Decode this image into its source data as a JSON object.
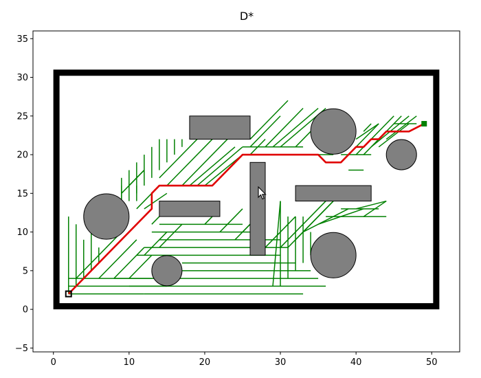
{
  "chart_data": {
    "type": "path-planning",
    "title": "D*",
    "xlabel": "",
    "ylabel": "",
    "xlim": [
      -2.7,
      53.7
    ],
    "ylim": [
      -5.5,
      36.0
    ],
    "xticks": [
      0,
      10,
      20,
      30,
      40,
      50
    ],
    "yticks": [
      -5,
      0,
      5,
      10,
      15,
      20,
      25,
      30,
      35
    ],
    "grid": false,
    "colors": {
      "boundary": "#000000",
      "obstacle_fill": "#808080",
      "obstacle_edge": "#000000",
      "explored": "#008000",
      "path": "#e00000",
      "start": "#000000",
      "goal": "#008000"
    },
    "boundary": {
      "x0": 0.4,
      "y0": 0.4,
      "x1": 50.6,
      "y1": 30.6
    },
    "circles": [
      {
        "cx": 7,
        "cy": 12,
        "r": 3
      },
      {
        "cx": 15,
        "cy": 5,
        "r": 2
      },
      {
        "cx": 37,
        "cy": 23,
        "r": 3
      },
      {
        "cx": 37,
        "cy": 7,
        "r": 3
      },
      {
        "cx": 46,
        "cy": 20,
        "r": 2
      }
    ],
    "rectangles": [
      {
        "x": 18,
        "y": 22,
        "w": 8,
        "h": 3
      },
      {
        "x": 14,
        "y": 12,
        "w": 8,
        "h": 2
      },
      {
        "x": 26,
        "y": 7,
        "w": 2,
        "h": 12
      },
      {
        "x": 32,
        "y": 14,
        "w": 10,
        "h": 2
      }
    ],
    "start": {
      "x": 2,
      "y": 2
    },
    "goal": {
      "x": 49,
      "y": 24
    },
    "path": [
      [
        2,
        2
      ],
      [
        13,
        13
      ],
      [
        13,
        15
      ],
      [
        14,
        16
      ],
      [
        21,
        16
      ],
      [
        25,
        20
      ],
      [
        35,
        20
      ],
      [
        36,
        19
      ],
      [
        38,
        19
      ],
      [
        40,
        21
      ],
      [
        41,
        21
      ],
      [
        42,
        22
      ],
      [
        43,
        22
      ],
      [
        44,
        23
      ],
      [
        47,
        23
      ],
      [
        48,
        23.5
      ],
      [
        49,
        24
      ]
    ],
    "explored_branches": [
      [
        [
          2,
          2
        ],
        [
          12,
          2
        ]
      ],
      [
        [
          2,
          2
        ],
        [
          2,
          12
        ]
      ],
      [
        [
          2,
          3
        ],
        [
          15,
          3
        ]
      ],
      [
        [
          2,
          4
        ],
        [
          13,
          4
        ]
      ],
      [
        [
          3,
          3
        ],
        [
          3,
          11
        ]
      ],
      [
        [
          4,
          4
        ],
        [
          4,
          9
        ]
      ],
      [
        [
          5,
          5
        ],
        [
          5,
          10
        ]
      ],
      [
        [
          6,
          6
        ],
        [
          6,
          8
        ]
      ],
      [
        [
          12,
          2
        ],
        [
          33,
          2
        ]
      ],
      [
        [
          10,
          3
        ],
        [
          36,
          3
        ]
      ],
      [
        [
          8,
          4
        ],
        [
          35,
          4
        ]
      ],
      [
        [
          17,
          5
        ],
        [
          34,
          5
        ]
      ],
      [
        [
          17,
          6
        ],
        [
          32,
          6
        ]
      ],
      [
        [
          11,
          7
        ],
        [
          30,
          7
        ]
      ],
      [
        [
          12,
          8
        ],
        [
          31,
          8
        ]
      ],
      [
        [
          14,
          9
        ],
        [
          30,
          9
        ]
      ],
      [
        [
          13,
          10
        ],
        [
          28,
          10
        ]
      ],
      [
        [
          14,
          11
        ],
        [
          25,
          11
        ]
      ],
      [
        [
          3,
          4
        ],
        [
          9,
          10
        ]
      ],
      [
        [
          4,
          4
        ],
        [
          10,
          10
        ]
      ],
      [
        [
          6,
          4
        ],
        [
          11,
          9
        ]
      ],
      [
        [
          8,
          4
        ],
        [
          12,
          8
        ]
      ],
      [
        [
          10,
          4
        ],
        [
          13,
          7
        ]
      ],
      [
        [
          12,
          7
        ],
        [
          15,
          10
        ]
      ],
      [
        [
          14,
          8
        ],
        [
          17,
          11
        ]
      ],
      [
        [
          13,
          11
        ],
        [
          15,
          13
        ]
      ],
      [
        [
          29,
          3
        ],
        [
          30,
          14
        ]
      ],
      [
        [
          30,
          3
        ],
        [
          30,
          14
        ]
      ],
      [
        [
          31,
          4
        ],
        [
          31,
          12
        ]
      ],
      [
        [
          32,
          5
        ],
        [
          32,
          12
        ]
      ],
      [
        [
          33,
          6
        ],
        [
          33,
          12
        ]
      ],
      [
        [
          34,
          7
        ],
        [
          34,
          10
        ]
      ],
      [
        [
          30,
          8
        ],
        [
          36,
          14
        ]
      ],
      [
        [
          31,
          8
        ],
        [
          37,
          14
        ]
      ],
      [
        [
          32,
          9
        ],
        [
          38,
          15
        ]
      ],
      [
        [
          33,
          10
        ],
        [
          39,
          13
        ]
      ],
      [
        [
          35,
          11
        ],
        [
          41,
          13
        ]
      ],
      [
        [
          36,
          12
        ],
        [
          44,
          12
        ]
      ],
      [
        [
          38,
          13
        ],
        [
          43,
          13
        ]
      ],
      [
        [
          40,
          13
        ],
        [
          44,
          14
        ]
      ],
      [
        [
          41,
          12
        ],
        [
          44,
          14
        ]
      ],
      [
        [
          28,
          8
        ],
        [
          32,
          12
        ]
      ],
      [
        [
          24,
          9
        ],
        [
          28,
          13
        ]
      ],
      [
        [
          25,
          10
        ],
        [
          28,
          13
        ]
      ],
      [
        [
          22,
          10
        ],
        [
          25,
          13
        ]
      ],
      [
        [
          20,
          11
        ],
        [
          22,
          13
        ]
      ],
      [
        [
          9,
          13
        ],
        [
          9,
          17
        ]
      ],
      [
        [
          10,
          14
        ],
        [
          10,
          18
        ]
      ],
      [
        [
          11,
          15
        ],
        [
          11,
          19
        ]
      ],
      [
        [
          12,
          16
        ],
        [
          12,
          20
        ]
      ],
      [
        [
          13,
          17
        ],
        [
          13,
          21
        ]
      ],
      [
        [
          14,
          18
        ],
        [
          14,
          22
        ]
      ],
      [
        [
          15,
          19
        ],
        [
          15,
          22
        ]
      ],
      [
        [
          16,
          20
        ],
        [
          16,
          22
        ]
      ],
      [
        [
          17,
          21
        ],
        [
          17,
          22
        ]
      ],
      [
        [
          9,
          15
        ],
        [
          12,
          18
        ]
      ],
      [
        [
          10,
          16
        ],
        [
          12,
          18
        ]
      ],
      [
        [
          14,
          17
        ],
        [
          20,
          23
        ]
      ],
      [
        [
          15,
          16
        ],
        [
          21,
          22
        ]
      ],
      [
        [
          17,
          16
        ],
        [
          23,
          22
        ]
      ],
      [
        [
          18,
          16
        ],
        [
          24,
          21
        ]
      ],
      [
        [
          19,
          16
        ],
        [
          25,
          21
        ]
      ],
      [
        [
          20,
          16
        ],
        [
          25,
          20
        ]
      ],
      [
        [
          21,
          16
        ],
        [
          25,
          20
        ]
      ],
      [
        [
          26,
          20
        ],
        [
          28,
          22
        ]
      ],
      [
        [
          25,
          21
        ],
        [
          33,
          21
        ]
      ],
      [
        [
          26,
          22
        ],
        [
          31,
          27
        ]
      ],
      [
        [
          28,
          21
        ],
        [
          33,
          26
        ]
      ],
      [
        [
          29,
          21
        ],
        [
          35,
          26
        ]
      ],
      [
        [
          30,
          21
        ],
        [
          36,
          26
        ]
      ],
      [
        [
          32,
          21
        ],
        [
          34,
          23
        ]
      ],
      [
        [
          26,
          21
        ],
        [
          30,
          25
        ]
      ],
      [
        [
          24,
          22
        ],
        [
          26,
          24
        ]
      ],
      [
        [
          34,
          20
        ],
        [
          37,
          20
        ]
      ],
      [
        [
          38,
          20
        ],
        [
          42,
          20
        ]
      ],
      [
        [
          39,
          18
        ],
        [
          41,
          18
        ]
      ],
      [
        [
          39,
          20
        ],
        [
          43,
          24
        ]
      ],
      [
        [
          40,
          20
        ],
        [
          45,
          25
        ]
      ],
      [
        [
          41,
          20
        ],
        [
          46,
          25
        ]
      ],
      [
        [
          42,
          21
        ],
        [
          47,
          25
        ]
      ],
      [
        [
          43,
          21
        ],
        [
          47,
          24
        ]
      ],
      [
        [
          44,
          22
        ],
        [
          48,
          25
        ]
      ],
      [
        [
          45,
          24
        ],
        [
          48,
          24
        ]
      ],
      [
        [
          41,
          23
        ],
        [
          42,
          24
        ]
      ],
      [
        [
          40,
          22
        ],
        [
          43,
          24
        ]
      ],
      [
        [
          12,
          13
        ],
        [
          15,
          15
        ]
      ],
      [
        [
          11,
          13
        ],
        [
          13,
          15
        ]
      ],
      [
        [
          11,
          14
        ],
        [
          11,
          16
        ]
      ],
      [
        [
          9,
          14
        ],
        [
          9,
          16
        ]
      ]
    ]
  },
  "cursor": {
    "name": "mouse-cursor"
  }
}
